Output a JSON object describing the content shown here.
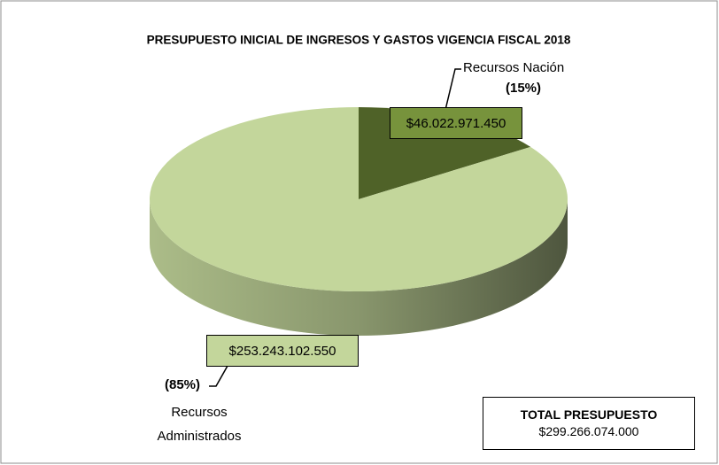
{
  "chart_data": {
    "type": "pie3d",
    "title": "PRESUPUESTO INICIAL DE INGRESOS Y GASTOS VIGENCIA FISCAL 2018",
    "categories": [
      "Recursos Nación",
      "Recursos Administrados"
    ],
    "values": [
      46022971450,
      253243102550
    ],
    "value_labels": [
      "$46.022.971.450",
      "$253.243.102.550"
    ],
    "percents": [
      15,
      85
    ],
    "percent_labels": [
      "(15%)",
      "(85%)"
    ],
    "colors": [
      "#4f6228",
      "#c3d69b"
    ],
    "label_box_colors": [
      "#77933c",
      "#c3d69b"
    ],
    "total_title": "TOTAL PRESUPUESTO",
    "total": 299266074000,
    "total_label": "$299.266.074.000"
  }
}
